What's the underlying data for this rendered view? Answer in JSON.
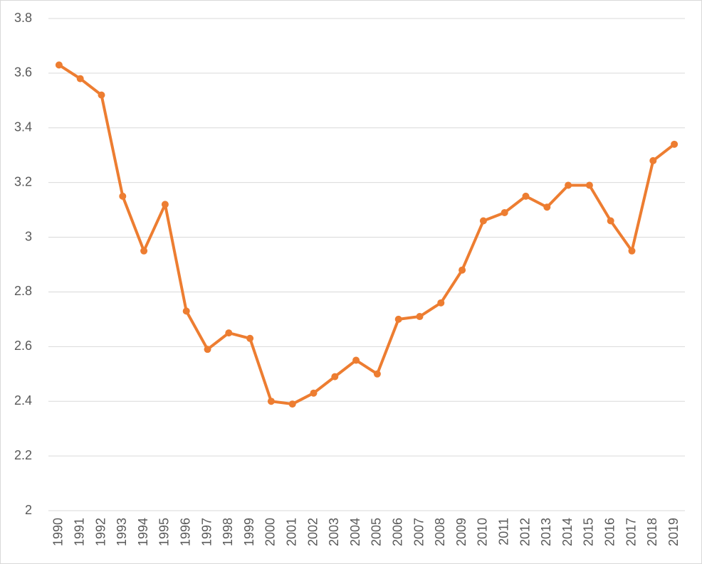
{
  "chart_data": {
    "type": "line",
    "categories": [
      "1990",
      "1991",
      "1992",
      "1993",
      "1994",
      "1995",
      "1996",
      "1997",
      "1998",
      "1999",
      "2000",
      "2001",
      "2002",
      "2003",
      "2004",
      "2005",
      "2006",
      "2007",
      "2008",
      "2009",
      "2010",
      "2011",
      "2012",
      "2013",
      "2014",
      "2015",
      "2016",
      "2017",
      "2018",
      "2019"
    ],
    "values": [
      3.63,
      3.58,
      3.52,
      3.15,
      2.95,
      3.12,
      2.73,
      2.59,
      2.65,
      2.63,
      2.4,
      2.39,
      2.43,
      2.49,
      2.55,
      2.5,
      2.7,
      2.71,
      2.76,
      2.88,
      3.06,
      3.09,
      3.15,
      3.11,
      3.19,
      3.19,
      3.06,
      2.95,
      3.28,
      3.34
    ],
    "color": "#ed7d31",
    "ylim": [
      2,
      3.8
    ],
    "yticks": [
      2,
      2.2,
      2.4,
      2.6,
      2.8,
      3,
      3.2,
      3.4,
      3.6,
      3.8
    ],
    "grid": true
  }
}
